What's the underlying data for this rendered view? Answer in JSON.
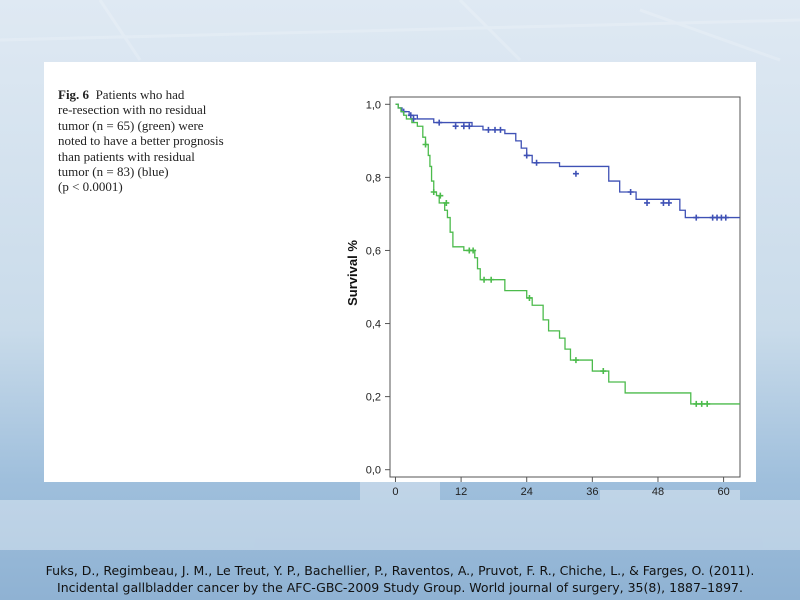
{
  "figure": {
    "label": "Fig. 6",
    "caption_lines": [
      "Patients who had",
      "re-resection with no residual",
      "tumor (n = 65) (green) were",
      "noted to have a better prognosis",
      "than patients with residual",
      "tumor (n = 83) (blue)",
      "(p < 0.0001)"
    ]
  },
  "citation": {
    "line1": "Fuks, D., Regimbeau, J. M., Le Treut, Y. P., Bachellier, P., Raventos, A., Pruvot, F. R., Chiche, L., & Farges, O. (2011).",
    "line2": "Incidental gallbladder cancer by the AFC-GBC-2009 Study Group. World journal of surgery, 35(8), 1887–1897."
  },
  "colors": {
    "blue": "#3f51b5",
    "green": "#4cbb4c"
  },
  "chart_data": {
    "type": "line",
    "subtype": "kaplan-meier-step",
    "ylabel": "Survival %",
    "xlabel": "",
    "xlim": [
      -1,
      63
    ],
    "ylim": [
      -0.02,
      1.02
    ],
    "x_ticks": [
      0,
      12,
      24,
      36,
      48,
      60
    ],
    "x_tick_labels": [
      "0",
      "12",
      "24",
      "36",
      "48",
      "60"
    ],
    "y_ticks": [
      0.0,
      0.2,
      0.4,
      0.6,
      0.8,
      1.0
    ],
    "y_tick_labels": [
      "0,0",
      "0,2",
      "0,4",
      "0,6",
      "0,8",
      "1,0"
    ],
    "grid": false,
    "legend": "none",
    "series": [
      {
        "color": "#3f51b5",
        "steps": [
          [
            0,
            1.0
          ],
          [
            0.5,
            0.99
          ],
          [
            1.2,
            0.98
          ],
          [
            2.5,
            0.97
          ],
          [
            4,
            0.96
          ],
          [
            7,
            0.95
          ],
          [
            14,
            0.94
          ],
          [
            16,
            0.93
          ],
          [
            20,
            0.92
          ],
          [
            22,
            0.9
          ],
          [
            23,
            0.88
          ],
          [
            24,
            0.86
          ],
          [
            25,
            0.84
          ],
          [
            30,
            0.83
          ],
          [
            39,
            0.79
          ],
          [
            41,
            0.76
          ],
          [
            44,
            0.74
          ],
          [
            52,
            0.71
          ],
          [
            53,
            0.69
          ],
          [
            63,
            0.69
          ]
        ],
        "censored": [
          [
            1.5,
            0.98
          ],
          [
            2.8,
            0.97
          ],
          [
            3.3,
            0.96
          ],
          [
            8,
            0.95
          ],
          [
            11,
            0.94
          ],
          [
            12.5,
            0.94
          ],
          [
            13.5,
            0.94
          ],
          [
            17,
            0.93
          ],
          [
            18.2,
            0.93
          ],
          [
            19.2,
            0.93
          ],
          [
            24,
            0.86
          ],
          [
            25.8,
            0.84
          ],
          [
            33,
            0.81
          ],
          [
            43,
            0.76
          ],
          [
            46,
            0.73
          ],
          [
            49,
            0.73
          ],
          [
            50,
            0.73
          ],
          [
            55,
            0.69
          ],
          [
            58,
            0.69
          ],
          [
            58.8,
            0.69
          ],
          [
            59.6,
            0.69
          ],
          [
            60.4,
            0.69
          ]
        ]
      },
      {
        "color": "#4cbb4c",
        "steps": [
          [
            0,
            1.0
          ],
          [
            0.5,
            0.99
          ],
          [
            1,
            0.98
          ],
          [
            1.5,
            0.97
          ],
          [
            2,
            0.96
          ],
          [
            3,
            0.95
          ],
          [
            4,
            0.94
          ],
          [
            5,
            0.91
          ],
          [
            5.5,
            0.89
          ],
          [
            6,
            0.86
          ],
          [
            6.3,
            0.83
          ],
          [
            6.6,
            0.79
          ],
          [
            7,
            0.76
          ],
          [
            7.5,
            0.75
          ],
          [
            8,
            0.73
          ],
          [
            9,
            0.71
          ],
          [
            9.5,
            0.69
          ],
          [
            10,
            0.65
          ],
          [
            10.5,
            0.61
          ],
          [
            12.5,
            0.6
          ],
          [
            14.5,
            0.58
          ],
          [
            15,
            0.55
          ],
          [
            15.5,
            0.52
          ],
          [
            20,
            0.49
          ],
          [
            24,
            0.47
          ],
          [
            25,
            0.45
          ],
          [
            27,
            0.41
          ],
          [
            28,
            0.38
          ],
          [
            30,
            0.36
          ],
          [
            31,
            0.33
          ],
          [
            32,
            0.3
          ],
          [
            36,
            0.27
          ],
          [
            39,
            0.24
          ],
          [
            42,
            0.21
          ],
          [
            54,
            0.18
          ],
          [
            63,
            0.18
          ]
        ],
        "censored": [
          [
            5.5,
            0.89
          ],
          [
            7,
            0.76
          ],
          [
            8.2,
            0.75
          ],
          [
            9.3,
            0.73
          ],
          [
            13.5,
            0.6
          ],
          [
            14.2,
            0.6
          ],
          [
            16.2,
            0.52
          ],
          [
            17.5,
            0.52
          ],
          [
            24.5,
            0.47
          ],
          [
            33,
            0.3
          ],
          [
            38,
            0.27
          ],
          [
            55,
            0.18
          ],
          [
            56,
            0.18
          ],
          [
            57,
            0.18
          ]
        ]
      }
    ]
  }
}
